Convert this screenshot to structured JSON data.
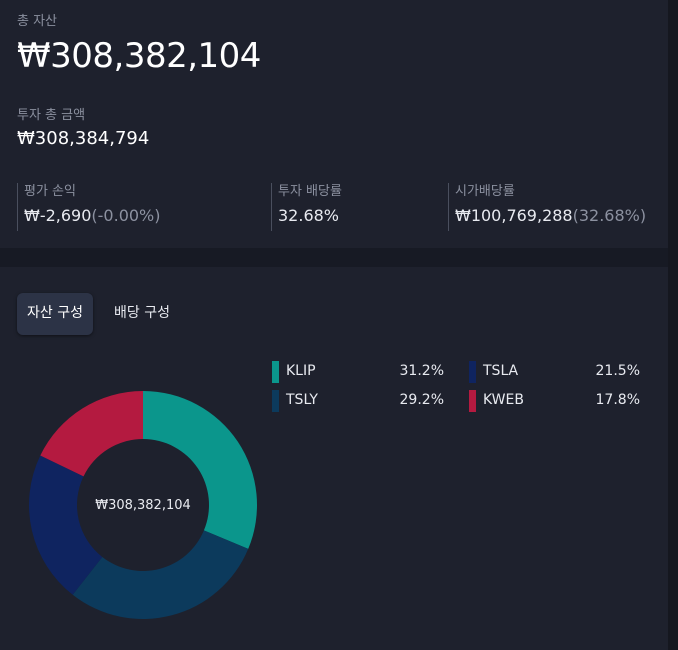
{
  "summary": {
    "total_label": "총 자산",
    "total_value": "₩308,382,104",
    "invest_label": "투자 총 금액",
    "invest_value": "₩308,384,794"
  },
  "stats": [
    {
      "label": "평가 손익",
      "value": "₩-2,690",
      "sub": "(-0.00%)"
    },
    {
      "label": "투자 배당률",
      "value": "32.68%",
      "sub": ""
    },
    {
      "label": "시가배당률",
      "value": "₩100,769,288",
      "sub": "(32.68%)"
    }
  ],
  "tabs": [
    {
      "label": "자산 구성",
      "active": true
    },
    {
      "label": "배당 구성",
      "active": false
    }
  ],
  "colors": {
    "teal": "#0b968c",
    "navy_blue": "#0c3a5c",
    "dark_navy": "#0f2460",
    "crimson": "#b41a40",
    "donut_center": "#1e212d"
  },
  "chart_data": {
    "type": "pie",
    "variant": "donut",
    "center_label": "₩308,382,104",
    "series": [
      {
        "name": "KLIP",
        "value": 31.2,
        "label": "31.2%",
        "color": "#0b968c"
      },
      {
        "name": "TSLY",
        "value": 29.2,
        "label": "29.2%",
        "color": "#0c3a5c"
      },
      {
        "name": "TSLA",
        "value": 21.5,
        "label": "21.5%",
        "color": "#0f2460"
      },
      {
        "name": "KWEB",
        "value": 17.8,
        "label": "17.8%",
        "color": "#b41a40"
      }
    ],
    "legend_placement": "right"
  }
}
